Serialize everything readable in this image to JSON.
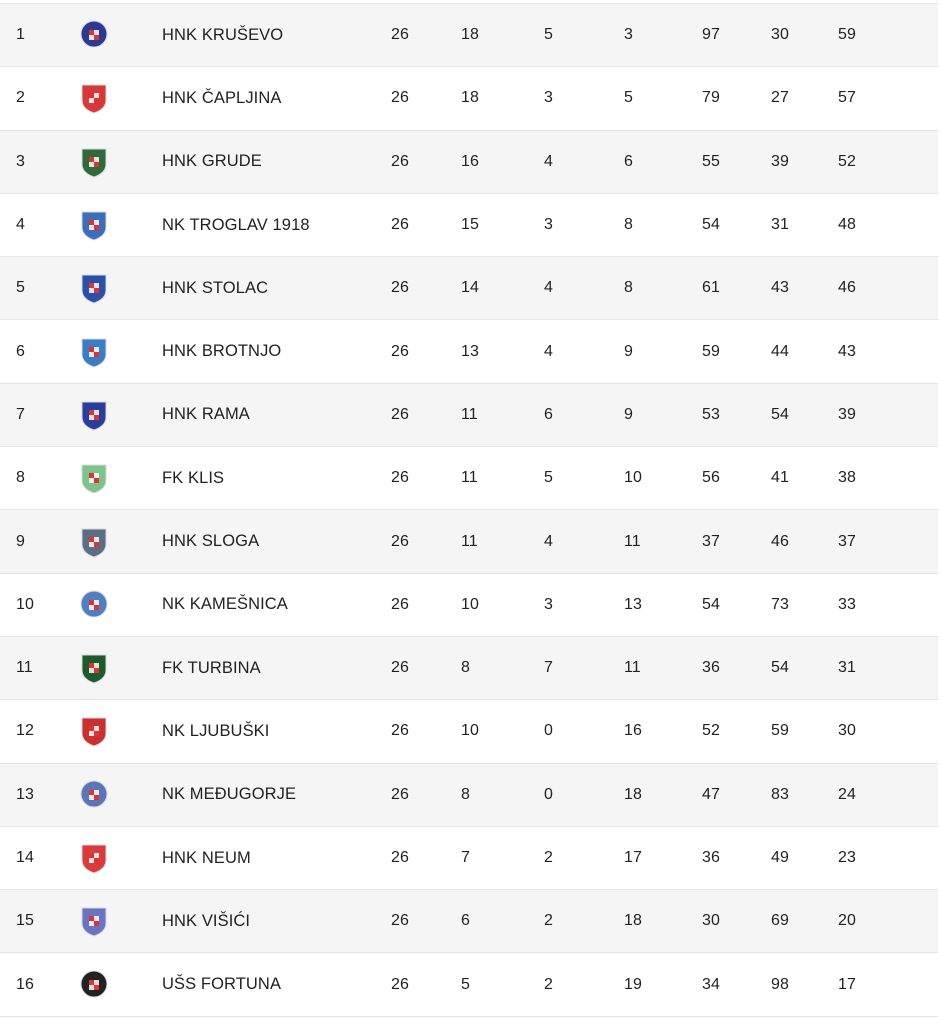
{
  "standings": [
    {
      "pos": "1",
      "team": "HNK KRUŠEVO",
      "played": "26",
      "won": "18",
      "drawn": "5",
      "lost": "3",
      "gf": "97",
      "ga": "30",
      "pts": "59",
      "crest": "kruSevo-crest-icon",
      "color": "#2b3a8f"
    },
    {
      "pos": "2",
      "team": "HNK ČAPLJINA",
      "played": "26",
      "won": "18",
      "drawn": "3",
      "lost": "5",
      "gf": "79",
      "ga": "27",
      "pts": "57",
      "crest": "capljina-crest-icon",
      "color": "#d43a3a"
    },
    {
      "pos": "3",
      "team": "HNK GRUDE",
      "played": "26",
      "won": "16",
      "drawn": "4",
      "lost": "6",
      "gf": "55",
      "ga": "39",
      "pts": "52",
      "crest": "grude-crest-icon",
      "color": "#2f6b3a"
    },
    {
      "pos": "4",
      "team": "NK TROGLAV 1918",
      "played": "26",
      "won": "15",
      "drawn": "3",
      "lost": "8",
      "gf": "54",
      "ga": "31",
      "pts": "48",
      "crest": "troglav-crest-icon",
      "color": "#3d6fb8"
    },
    {
      "pos": "5",
      "team": "HNK STOLAC",
      "played": "26",
      "won": "14",
      "drawn": "4",
      "lost": "8",
      "gf": "61",
      "ga": "43",
      "pts": "46",
      "crest": "stolac-crest-icon",
      "color": "#2c4fa8"
    },
    {
      "pos": "6",
      "team": "HNK BROTNJO",
      "played": "26",
      "won": "13",
      "drawn": "4",
      "lost": "9",
      "gf": "59",
      "ga": "44",
      "pts": "43",
      "crest": "brotnjo-crest-icon",
      "color": "#3c7cc4"
    },
    {
      "pos": "7",
      "team": "HNK RAMA",
      "played": "26",
      "won": "11",
      "drawn": "6",
      "lost": "9",
      "gf": "53",
      "ga": "54",
      "pts": "39",
      "crest": "rama-crest-icon",
      "color": "#2a3d9a"
    },
    {
      "pos": "8",
      "team": "FK KLIS",
      "played": "26",
      "won": "11",
      "drawn": "5",
      "lost": "10",
      "gf": "56",
      "ga": "41",
      "pts": "38",
      "crest": "klis-crest-icon",
      "color": "#7cc48a"
    },
    {
      "pos": "9",
      "team": "HNK SLOGA",
      "played": "26",
      "won": "11",
      "drawn": "4",
      "lost": "11",
      "gf": "37",
      "ga": "46",
      "pts": "37",
      "crest": "sloga-crest-icon",
      "color": "#5a6f86"
    },
    {
      "pos": "10",
      "team": "NK KAMEŠNICA",
      "played": "26",
      "won": "10",
      "drawn": "3",
      "lost": "13",
      "gf": "54",
      "ga": "73",
      "pts": "33",
      "crest": "kamesnica-crest-icon",
      "color": "#4f7fc0"
    },
    {
      "pos": "11",
      "team": "FK TURBINA",
      "played": "26",
      "won": "8",
      "drawn": "7",
      "lost": "11",
      "gf": "36",
      "ga": "54",
      "pts": "31",
      "crest": "turbina-crest-icon",
      "color": "#1e5a2c"
    },
    {
      "pos": "12",
      "team": "NK LJUBUŠKI",
      "played": "26",
      "won": "10",
      "drawn": "0",
      "lost": "16",
      "gf": "52",
      "ga": "59",
      "pts": "30",
      "crest": "ljubuski-crest-icon",
      "color": "#c93030"
    },
    {
      "pos": "13",
      "team": "NK MEĐUGORJE",
      "played": "26",
      "won": "8",
      "drawn": "0",
      "lost": "18",
      "gf": "47",
      "ga": "83",
      "pts": "24",
      "crest": "medugorje-crest-icon",
      "color": "#5876b8"
    },
    {
      "pos": "14",
      "team": "HNK NEUM",
      "played": "26",
      "won": "7",
      "drawn": "2",
      "lost": "17",
      "gf": "36",
      "ga": "49",
      "pts": "23",
      "crest": "neum-crest-icon",
      "color": "#d83c3c"
    },
    {
      "pos": "15",
      "team": "HNK VIŠIĆI",
      "played": "26",
      "won": "6",
      "drawn": "2",
      "lost": "18",
      "gf": "30",
      "ga": "69",
      "pts": "20",
      "crest": "visici-crest-icon",
      "color": "#6a74c0"
    },
    {
      "pos": "16",
      "team": "UŠS FORTUNA",
      "played": "26",
      "won": "5",
      "drawn": "2",
      "lost": "19",
      "gf": "34",
      "ga": "98",
      "pts": "17",
      "crest": "fortuna-crest-icon",
      "color": "#222222"
    }
  ]
}
